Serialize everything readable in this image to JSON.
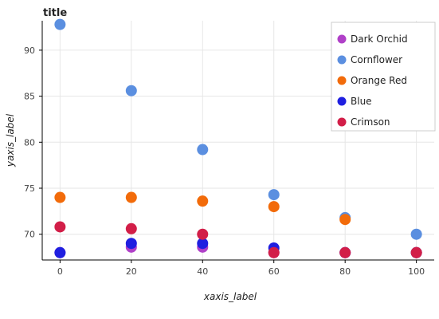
{
  "chart_data": {
    "type": "scatter",
    "title": "title",
    "xlabel": "xaxis_label",
    "ylabel": "yaxis_label",
    "xlim": [
      -5,
      105
    ],
    "ylim": [
      67.2,
      93.2
    ],
    "x_ticks": [
      0,
      20,
      40,
      60,
      80,
      100
    ],
    "y_ticks": [
      70,
      75,
      80,
      85,
      90
    ],
    "grid": true,
    "legend_position": "top-right",
    "series": [
      {
        "name": "Dark Orchid",
        "color": "#b040c8",
        "x": [
          0,
          20,
          40,
          60,
          80,
          100
        ],
        "y": [
          68.0,
          68.6,
          68.6,
          68.0,
          68.0,
          68.0
        ]
      },
      {
        "name": "Cornflower",
        "color": "#5b8fe0",
        "x": [
          0,
          20,
          40,
          60,
          80,
          100
        ],
        "y": [
          92.8,
          85.6,
          79.2,
          74.3,
          71.8,
          70.0
        ]
      },
      {
        "name": "Orange Red",
        "color": "#f26b0a",
        "x": [
          0,
          20,
          40,
          60,
          80,
          100
        ],
        "y": [
          74.0,
          74.0,
          73.6,
          73.0,
          71.6,
          68.0
        ]
      },
      {
        "name": "Blue",
        "color": "#1f1fe0",
        "x": [
          0,
          20,
          40,
          60,
          80,
          100
        ],
        "y": [
          68.0,
          69.0,
          69.0,
          68.5,
          68.0,
          68.0
        ]
      },
      {
        "name": "Crimson",
        "color": "#d21e48",
        "x": [
          0,
          20,
          40,
          60,
          80,
          100
        ],
        "y": [
          70.8,
          70.6,
          70.0,
          68.0,
          68.0,
          68.0
        ]
      }
    ]
  }
}
